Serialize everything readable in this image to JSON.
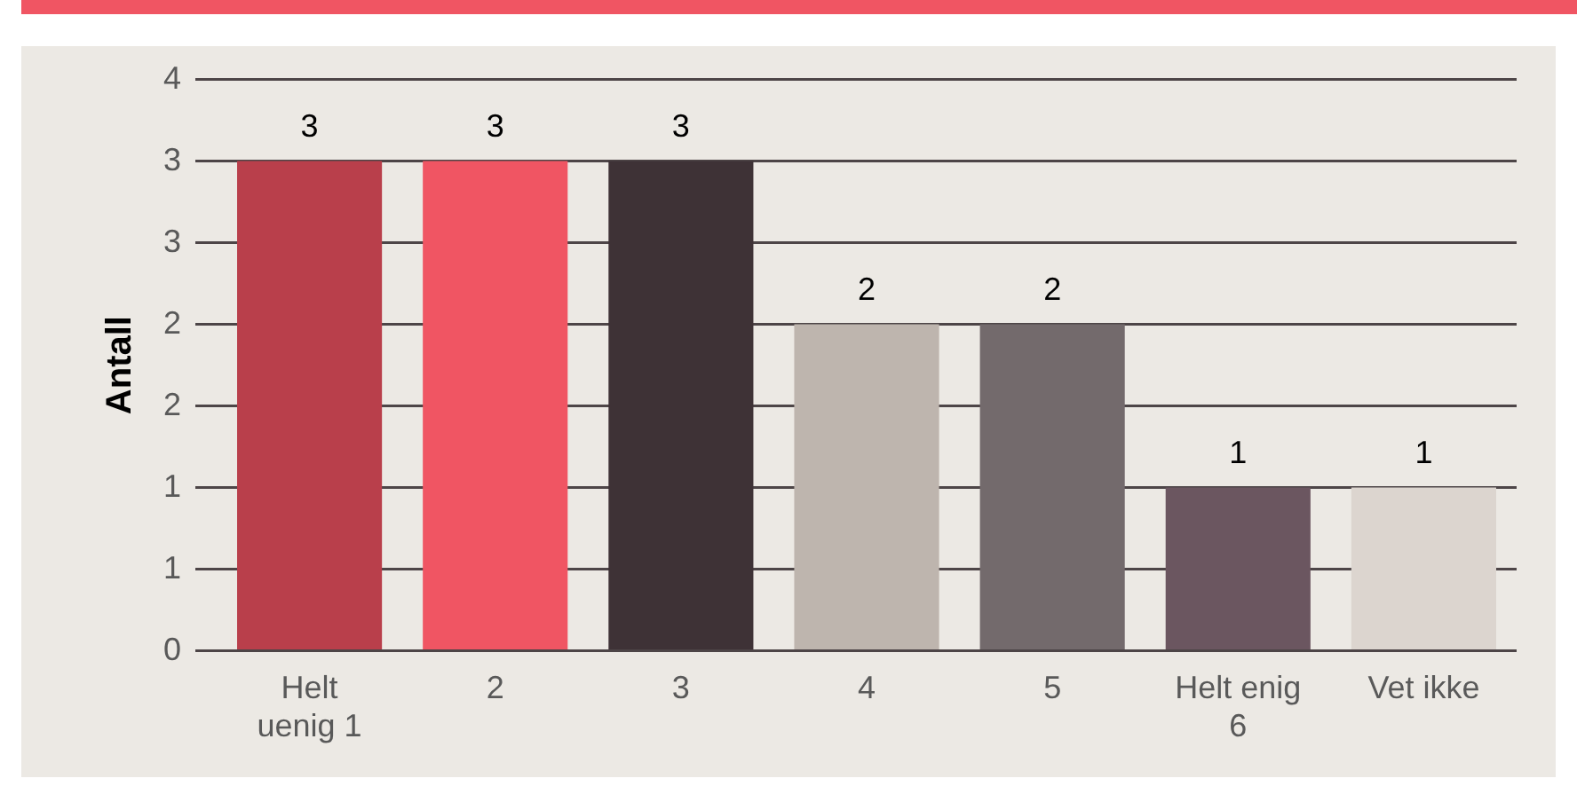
{
  "chart_data": {
    "type": "bar",
    "ylabel": "Antall",
    "categories": [
      [
        "Helt",
        "uenig 1"
      ],
      "2",
      "3",
      "4",
      "5",
      [
        "Helt enig",
        "6"
      ],
      "Vet ikke"
    ],
    "values": [
      3,
      3,
      3,
      2,
      2,
      1,
      1
    ],
    "colors": [
      "#b93f4b",
      "#f05563",
      "#3e3236",
      "#beb5ae",
      "#736a6c",
      "#6b5660",
      "#dcd5cf"
    ],
    "ylim": [
      0,
      3.5
    ],
    "yticks": [
      0,
      {
        "value": 0.5,
        "label": "1"
      },
      1,
      {
        "value": 1.5,
        "label": "2"
      },
      2,
      {
        "value": 2.5,
        "label": "3"
      },
      3,
      {
        "value": 3.5,
        "label": "4"
      }
    ],
    "grid": "y",
    "data_labels": true,
    "legend": false
  }
}
